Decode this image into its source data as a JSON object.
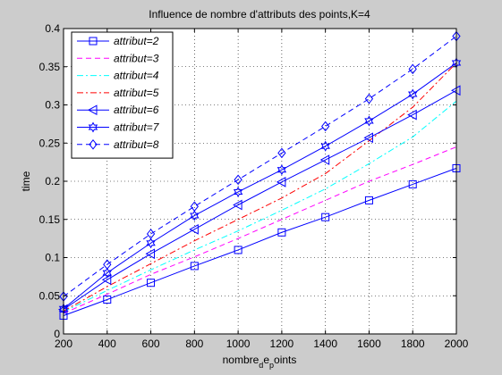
{
  "chart_data": {
    "type": "line",
    "title": "Influence de nombre d'attributs des points,K=4",
    "xlabel": "nombre_d e_p oints",
    "xlabel_parts": [
      "nombre",
      "d",
      "e",
      "p",
      "oints"
    ],
    "ylabel": "time",
    "xlim": [
      200,
      2000
    ],
    "ylim": [
      0,
      0.4
    ],
    "xticks": [
      200,
      400,
      600,
      800,
      1000,
      1200,
      1400,
      1600,
      1800,
      2000
    ],
    "xtick_labels": [
      "200",
      "400",
      "600",
      "800",
      "1000",
      "1200",
      "1400",
      "1600",
      "1800",
      "2000"
    ],
    "yticks": [
      0,
      0.05,
      0.1,
      0.15,
      0.2,
      0.25,
      0.3,
      0.35,
      0.4
    ],
    "ytick_labels": [
      "0",
      "0.05",
      "0.1",
      "0.15",
      "0.2",
      "0.25",
      "0.3",
      "0.35",
      "0.4"
    ],
    "grid": true,
    "legend_position": "top-left",
    "x": [
      200,
      400,
      600,
      800,
      1000,
      1200,
      1400,
      1600,
      1800,
      2000
    ],
    "series": [
      {
        "name": "attribut=2",
        "color": "#0000ff",
        "dash": "solid",
        "marker": "square",
        "values": [
          0.024,
          0.045,
          0.067,
          0.089,
          0.11,
          0.133,
          0.153,
          0.175,
          0.196,
          0.217
        ]
      },
      {
        "name": "attribut=3",
        "color": "#ff00ff",
        "dash": "dashed",
        "marker": "none",
        "values": [
          0.027,
          0.052,
          0.078,
          0.101,
          0.125,
          0.15,
          0.175,
          0.2,
          0.222,
          0.245
        ]
      },
      {
        "name": "attribut=4",
        "color": "#00ffff",
        "dash": "dashdot",
        "marker": "none",
        "values": [
          0.029,
          0.057,
          0.084,
          0.11,
          0.135,
          0.162,
          0.19,
          0.223,
          0.258,
          0.305
        ]
      },
      {
        "name": "attribut=5",
        "color": "#ff0000",
        "dash": "dashdot",
        "marker": "none",
        "values": [
          0.03,
          0.062,
          0.092,
          0.122,
          0.15,
          0.178,
          0.21,
          0.253,
          0.297,
          0.355
        ]
      },
      {
        "name": "attribut=6",
        "color": "#0000ff",
        "dash": "solid",
        "marker": "triangle-left",
        "values": [
          0.032,
          0.071,
          0.105,
          0.137,
          0.169,
          0.199,
          0.228,
          0.257,
          0.287,
          0.319
        ]
      },
      {
        "name": "attribut=7",
        "color": "#0000ff",
        "dash": "solid",
        "marker": "hexagram",
        "values": [
          0.033,
          0.08,
          0.119,
          0.155,
          0.186,
          0.215,
          0.246,
          0.279,
          0.314,
          0.355
        ]
      },
      {
        "name": "attribut=8",
        "color": "#0000ff",
        "dash": "dashed",
        "marker": "diamond",
        "values": [
          0.049,
          0.091,
          0.131,
          0.167,
          0.202,
          0.237,
          0.272,
          0.308,
          0.347,
          0.39
        ]
      }
    ]
  }
}
